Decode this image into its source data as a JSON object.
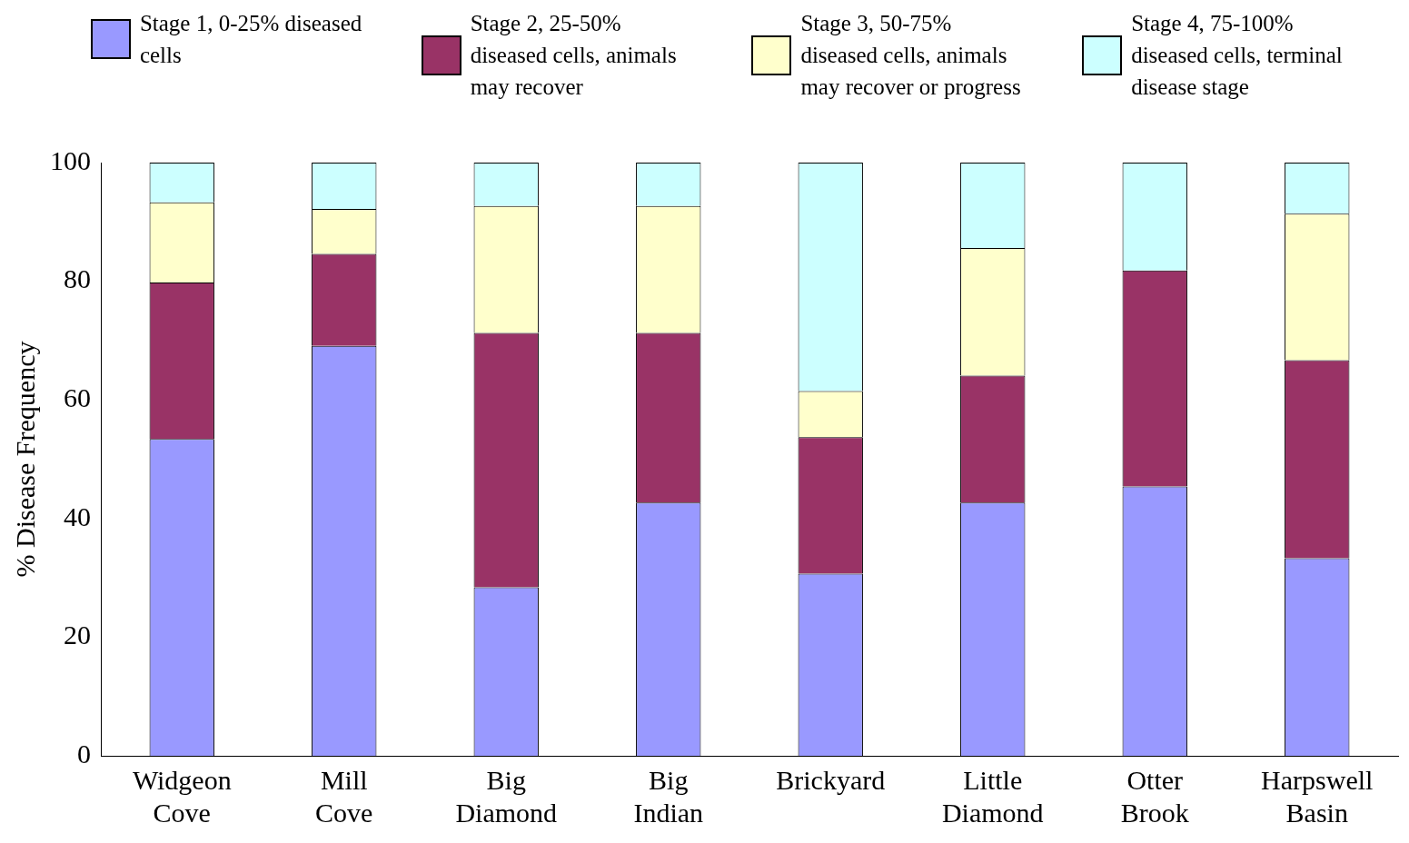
{
  "chart_data": {
    "type": "bar",
    "stacked": true,
    "ylabel": "% Disease Frequency",
    "categories": [
      "Widgeon Cove",
      "Mill Cove",
      "Big Diamond",
      "Big Indian",
      "Brickyard",
      "Little Diamond",
      "Otter Brook",
      "Harpswell Basin"
    ],
    "series": [
      {
        "name": "Stage 1, 0-25% diseased cells",
        "color": "#9999ff",
        "values": [
          53.4,
          69.1,
          28.4,
          42.7,
          30.7,
          42.7,
          45.4,
          33.3
        ]
      },
      {
        "name": "Stage 2, 25-50% diseased cells, animals may recover",
        "color": "#993366",
        "values": [
          26.4,
          15.5,
          42.9,
          28.6,
          23.0,
          21.4,
          36.4,
          33.4
        ]
      },
      {
        "name": "Stage 3, 50-75% diseased cells, animals may recover or progress",
        "color": "#ffffcc",
        "values": [
          13.5,
          7.6,
          21.4,
          21.4,
          7.8,
          21.5,
          0,
          24.7
        ]
      },
      {
        "name": "Stage 4, 75-100% diseased cells, terminal disease stage",
        "color": "#ccffff",
        "values": [
          6.7,
          7.8,
          7.3,
          7.3,
          38.5,
          14.4,
          18.2,
          8.6
        ]
      }
    ],
    "ylim": [
      0,
      100
    ],
    "yticks": [
      0,
      20,
      40,
      60,
      80,
      100
    ],
    "grid": false,
    "legend": "top"
  }
}
